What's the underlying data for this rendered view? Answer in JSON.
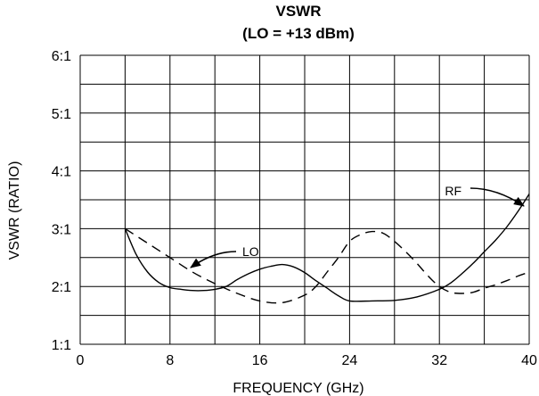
{
  "chart_data": {
    "type": "line",
    "title": "VSWR",
    "subtitle": "(LO = +13 dBm)",
    "xlabel": "FREQUENCY (GHz)",
    "ylabel": "VSWR (RATIO)",
    "xlim": [
      0,
      40
    ],
    "ylim": [
      1,
      6
    ],
    "x_ticks": [
      0,
      8,
      16,
      24,
      32,
      40
    ],
    "x_tick_labels": [
      "0",
      "8",
      "16",
      "24",
      "32",
      "40"
    ],
    "x_minor_step": 4,
    "y_ticks": [
      1,
      2,
      3,
      4,
      5,
      6
    ],
    "y_tick_labels": [
      "1:1",
      "2:1",
      "3:1",
      "4:1",
      "5:1",
      "6:1"
    ],
    "y_minor_step": 0.5,
    "grid": true,
    "series": [
      {
        "name": "RF",
        "style": "solid",
        "x": [
          4,
          5,
          6,
          7,
          8,
          9,
          10,
          11,
          12,
          13,
          14,
          15,
          16,
          17,
          18,
          19,
          20,
          21,
          22,
          23,
          24,
          26,
          28,
          30,
          32,
          33,
          34,
          35,
          36,
          37,
          38,
          39,
          40
        ],
        "y": [
          3.0,
          2.55,
          2.25,
          2.07,
          1.98,
          1.95,
          1.93,
          1.93,
          1.95,
          2.0,
          2.12,
          2.22,
          2.3,
          2.35,
          2.38,
          2.34,
          2.24,
          2.1,
          1.97,
          1.84,
          1.75,
          1.75,
          1.76,
          1.82,
          1.95,
          2.06,
          2.22,
          2.4,
          2.6,
          2.8,
          3.03,
          3.3,
          3.6
        ]
      },
      {
        "name": "LO",
        "style": "dashed",
        "x": [
          4,
          6,
          8,
          10,
          12,
          14,
          16,
          18,
          20,
          21,
          22,
          23,
          24,
          25,
          26,
          27,
          28,
          29,
          30,
          31,
          32,
          33,
          34,
          35,
          36,
          37,
          38,
          39,
          40
        ],
        "y": [
          3.0,
          2.75,
          2.5,
          2.25,
          2.05,
          1.88,
          1.75,
          1.72,
          1.85,
          2.0,
          2.25,
          2.5,
          2.78,
          2.9,
          2.95,
          2.92,
          2.78,
          2.6,
          2.4,
          2.18,
          2.0,
          1.9,
          1.88,
          1.9,
          1.97,
          2.03,
          2.1,
          2.18,
          2.25
        ]
      }
    ],
    "annotations": [
      {
        "text": "LO",
        "arrow_to": [
          10,
          2.3
        ]
      },
      {
        "text": "RF",
        "arrow_to": [
          39.6,
          3.45
        ]
      }
    ]
  }
}
